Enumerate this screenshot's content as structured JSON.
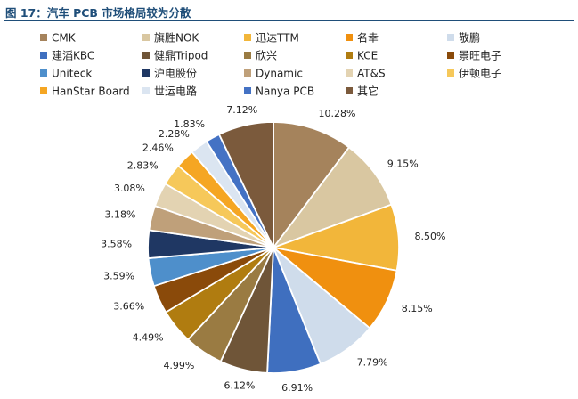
{
  "header": {
    "title": "图 17：汽车 PCB 市场格局较为分散"
  },
  "chart_data": {
    "type": "pie",
    "title": "",
    "legend_position": "top",
    "slices": [
      {
        "label": "CMK",
        "value": 10.28,
        "display": "10.28%",
        "color": "#a5835c"
      },
      {
        "label": "旗胜NOK",
        "value": 9.15,
        "display": "9.15%",
        "color": "#d9c7a1"
      },
      {
        "label": "迅达TTM",
        "value": 8.5,
        "display": "8.50%",
        "color": "#f2b63a"
      },
      {
        "label": "名幸",
        "value": 8.15,
        "display": "8.15%",
        "color": "#f0900f"
      },
      {
        "label": "敬鹏",
        "value": 7.79,
        "display": "7.79%",
        "color": "#cfdceb"
      },
      {
        "label": "建滔KBC",
        "value": 6.91,
        "display": "6.91%",
        "color": "#3f6fbf"
      },
      {
        "label": "健鼎Tripod",
        "value": 6.12,
        "display": "6.12%",
        "color": "#6f5538"
      },
      {
        "label": "欣兴",
        "value": 4.99,
        "display": "4.99%",
        "color": "#9a7b42"
      },
      {
        "label": "KCE",
        "value": 4.49,
        "display": "4.49%",
        "color": "#b07c10"
      },
      {
        "label": "景旺电子",
        "value": 3.66,
        "display": "3.66%",
        "color": "#8a4a0a"
      },
      {
        "label": "Uniteck",
        "value": 3.59,
        "display": "3.59%",
        "color": "#4e8fcb"
      },
      {
        "label": "沪电股份",
        "value": 3.58,
        "display": "3.58%",
        "color": "#1f3763"
      },
      {
        "label": "Dynamic",
        "value": 3.18,
        "display": "3.18%",
        "color": "#bfa07a"
      },
      {
        "label": "AT&S",
        "value": 3.08,
        "display": "3.08%",
        "color": "#e3d3b2"
      },
      {
        "label": "伊顿电子",
        "value": 2.83,
        "display": "2.83%",
        "color": "#f6c85a"
      },
      {
        "label": "HanStar Board",
        "value": 2.46,
        "display": "2.46%",
        "color": "#f5a623"
      },
      {
        "label": "世运电路",
        "value": 2.28,
        "display": "2.28%",
        "color": "#dbe5f1"
      },
      {
        "label": "Nanya PCB",
        "value": 1.83,
        "display": "1.83%",
        "color": "#4472c4"
      },
      {
        "label": "其它",
        "value": 7.12,
        "display": "7.12%",
        "color": "#7b5a3c"
      }
    ]
  }
}
